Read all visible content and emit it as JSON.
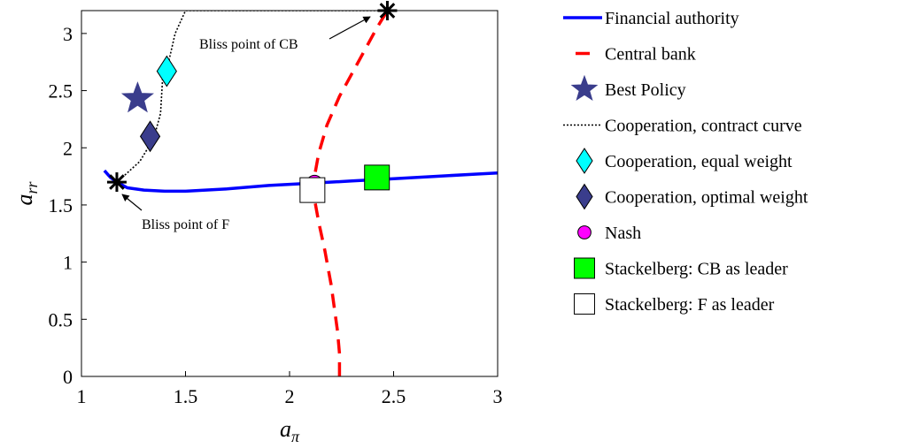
{
  "chart_data": {
    "type": "line",
    "title": "",
    "xlabel": "a_π",
    "ylabel": "a_rr",
    "xlim": [
      1,
      3
    ],
    "ylim": [
      0,
      3.2
    ],
    "xticks": [
      1,
      1.5,
      2,
      2.5,
      3
    ],
    "yticks": [
      0,
      0.5,
      1,
      1.5,
      2,
      2.5,
      3
    ],
    "xtick_labels": [
      "1",
      "1.5",
      "2",
      "2.5",
      "3"
    ],
    "ytick_labels": [
      "0",
      "0.5",
      "1",
      "1.5",
      "2",
      "2.5",
      "3"
    ],
    "grid": false,
    "legend_position": "outside-right",
    "series": [
      {
        "name": "Financial authority",
        "kind": "line",
        "style": "solid",
        "color": "#0000ff",
        "points": [
          [
            1.11,
            1.8
          ],
          [
            1.14,
            1.74
          ],
          [
            1.17,
            1.7
          ],
          [
            1.22,
            1.65
          ],
          [
            1.3,
            1.63
          ],
          [
            1.4,
            1.62
          ],
          [
            1.5,
            1.62
          ],
          [
            1.7,
            1.64
          ],
          [
            1.9,
            1.67
          ],
          [
            2.1,
            1.69
          ],
          [
            2.3,
            1.71
          ],
          [
            2.5,
            1.73
          ],
          [
            2.7,
            1.75
          ],
          [
            2.9,
            1.77
          ],
          [
            3.0,
            1.78
          ]
        ]
      },
      {
        "name": "Central bank",
        "kind": "line",
        "style": "dashed",
        "color": "#ff0000",
        "points": [
          [
            2.24,
            0.0
          ],
          [
            2.24,
            0.2
          ],
          [
            2.23,
            0.4
          ],
          [
            2.2,
            0.8
          ],
          [
            2.17,
            1.1
          ],
          [
            2.14,
            1.35
          ],
          [
            2.12,
            1.55
          ],
          [
            2.12,
            1.75
          ],
          [
            2.14,
            1.95
          ],
          [
            2.18,
            2.2
          ],
          [
            2.24,
            2.45
          ],
          [
            2.3,
            2.65
          ],
          [
            2.36,
            2.85
          ],
          [
            2.42,
            3.05
          ],
          [
            2.47,
            3.2
          ]
        ]
      },
      {
        "name": "Best Policy",
        "kind": "marker",
        "marker": "star",
        "color": "#3a3d8c",
        "points": [
          [
            1.27,
            2.43
          ]
        ]
      },
      {
        "name": "Cooperation, contract curve",
        "kind": "line",
        "style": "dotted",
        "color": "#000000",
        "points": [
          [
            1.17,
            1.7
          ],
          [
            1.22,
            1.78
          ],
          [
            1.28,
            1.88
          ],
          [
            1.32,
            2.0
          ],
          [
            1.35,
            2.1
          ],
          [
            1.38,
            2.3
          ],
          [
            1.39,
            2.6
          ],
          [
            1.41,
            2.68
          ],
          [
            1.45,
            3.0
          ],
          [
            1.5,
            3.2
          ],
          [
            1.8,
            3.2
          ],
          [
            2.1,
            3.2
          ],
          [
            2.47,
            3.2
          ]
        ]
      },
      {
        "name": "Cooperation, equal weight",
        "kind": "marker",
        "marker": "diamond",
        "color": "#00ffff",
        "points": [
          [
            1.41,
            2.67
          ]
        ]
      },
      {
        "name": "Cooperation, optimal weight",
        "kind": "marker",
        "marker": "diamond",
        "color": "#3a3d8c",
        "points": [
          [
            1.33,
            2.1
          ]
        ]
      },
      {
        "name": "Nash",
        "kind": "marker",
        "marker": "circle",
        "color": "#ff00ff",
        "points": [
          [
            2.12,
            1.69
          ]
        ]
      },
      {
        "name": "Stackelberg: CB as leader",
        "kind": "marker",
        "marker": "square",
        "color": "#00ff00",
        "points": [
          [
            2.42,
            1.74
          ]
        ]
      },
      {
        "name": "Stackelberg: F as leader",
        "kind": "marker",
        "marker": "square",
        "color": "#ffffff",
        "points": [
          [
            2.11,
            1.63
          ]
        ]
      }
    ],
    "bliss_points": [
      {
        "label": "Bliss point of F",
        "point": [
          1.17,
          1.7
        ],
        "marker": "asterisk",
        "color": "#000000"
      },
      {
        "label": "Bliss point of CB",
        "point": [
          2.47,
          3.2
        ],
        "marker": "asterisk",
        "color": "#000000"
      }
    ]
  }
}
